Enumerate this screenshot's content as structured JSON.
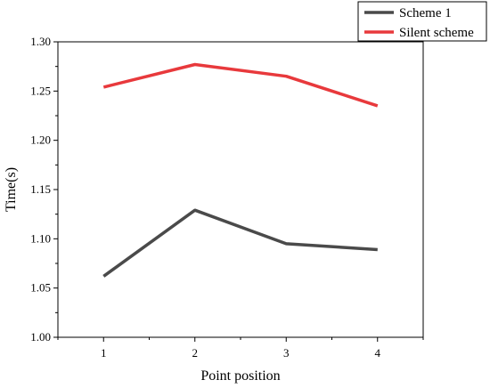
{
  "chart_data": {
    "type": "line",
    "xlabel": "Point position",
    "ylabel": "Time(s)",
    "x": [
      1,
      2,
      3,
      4
    ],
    "x_ticks": [
      "1",
      "2",
      "3",
      "4"
    ],
    "xlim": [
      0.5,
      4.5
    ],
    "ylim": [
      1.0,
      1.3
    ],
    "y_ticks": [
      "1.00",
      "1.05",
      "1.10",
      "1.15",
      "1.20",
      "1.25",
      "1.30"
    ],
    "grid": false,
    "legend_position": "top-right, outside plot",
    "series": [
      {
        "name": "Scheme 1",
        "color": "#4a4a4a",
        "values": [
          1.062,
          1.129,
          1.095,
          1.089
        ]
      },
      {
        "name": "Silent scheme",
        "color": "#e8393c",
        "values": [
          1.254,
          1.277,
          1.265,
          1.235
        ]
      }
    ]
  }
}
